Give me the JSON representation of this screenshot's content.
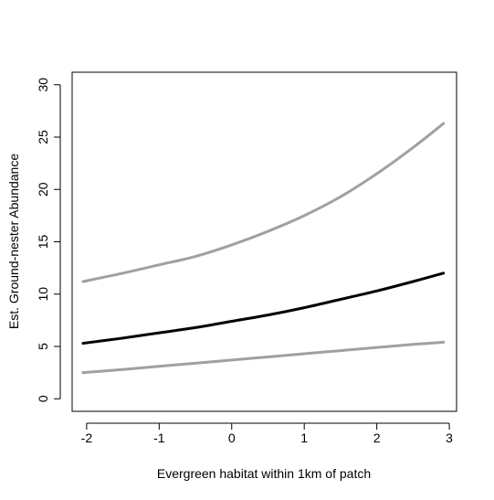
{
  "chart_data": {
    "type": "line",
    "xlabel": "Evergreen habitat within 1km of patch",
    "ylabel": "Est. Ground-nester Abundance",
    "xlim": [
      -2.2,
      3.1
    ],
    "ylim": [
      -1.2,
      31.2
    ],
    "xticks": [
      -2,
      -1,
      0,
      1,
      2,
      3
    ],
    "yticks": [
      0,
      5,
      10,
      15,
      20,
      25,
      30
    ],
    "grid": false,
    "legend": "none",
    "x": [
      -2.05,
      -1.5,
      -1.0,
      -0.5,
      0.0,
      0.5,
      1.0,
      1.5,
      2.0,
      2.5,
      2.92
    ],
    "series": [
      {
        "role": "upper confidence bound",
        "color": "#a0a0a0",
        "values": [
          11.2,
          12.0,
          12.8,
          13.6,
          14.7,
          16.0,
          17.5,
          19.3,
          21.5,
          24.0,
          26.3
        ]
      },
      {
        "role": "estimate",
        "color": "#000000",
        "values": [
          5.3,
          5.8,
          6.3,
          6.8,
          7.4,
          8.0,
          8.7,
          9.5,
          10.3,
          11.2,
          12.0
        ]
      },
      {
        "role": "lower confidence bound",
        "color": "#a0a0a0",
        "values": [
          2.5,
          2.8,
          3.1,
          3.4,
          3.7,
          4.0,
          4.3,
          4.6,
          4.9,
          5.2,
          5.4
        ]
      }
    ]
  }
}
